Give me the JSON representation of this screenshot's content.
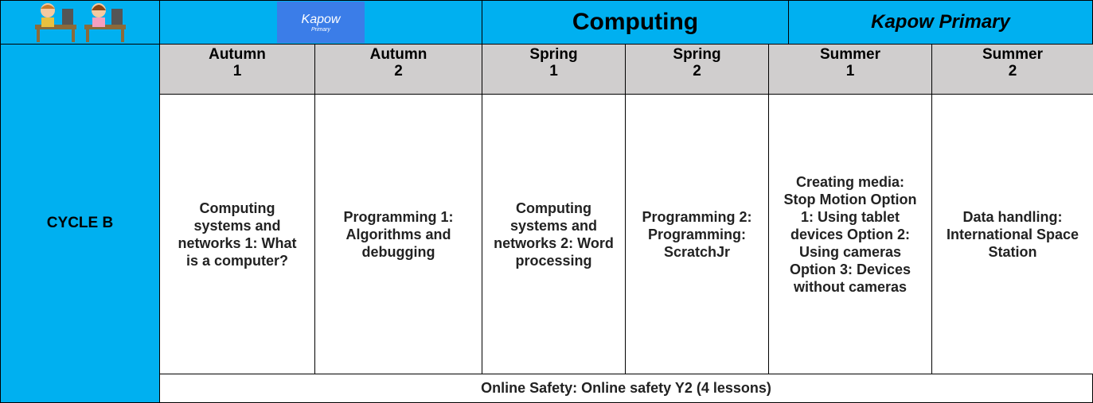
{
  "header": {
    "logo": {
      "word": "Kapow",
      "sub": "Primary"
    },
    "title": "Computing",
    "brand": "Kapow Primary"
  },
  "terms": [
    {
      "name": "Autumn",
      "number": "1"
    },
    {
      "name": "Autumn",
      "number": "2"
    },
    {
      "name": "Spring",
      "number": "1"
    },
    {
      "name": "Spring",
      "number": "2"
    },
    {
      "name": "Summer",
      "number": "1"
    },
    {
      "name": "Summer",
      "number": "2"
    }
  ],
  "cycle": "CYCLE B",
  "units": [
    "Computing systems and networks 1: What is a computer?",
    "Programming 1: Algorithms and debugging",
    "Computing systems and networks 2: Word processing",
    "Programming 2: Programming: ScratchJr",
    "Creating media: Stop Motion Option 1: Using tablet devices Option 2: Using cameras Option 3: Devices without cameras",
    "Data handling: International Space Station"
  ],
  "footer": "Online Safety: Online safety Y2 (4 lessons)"
}
